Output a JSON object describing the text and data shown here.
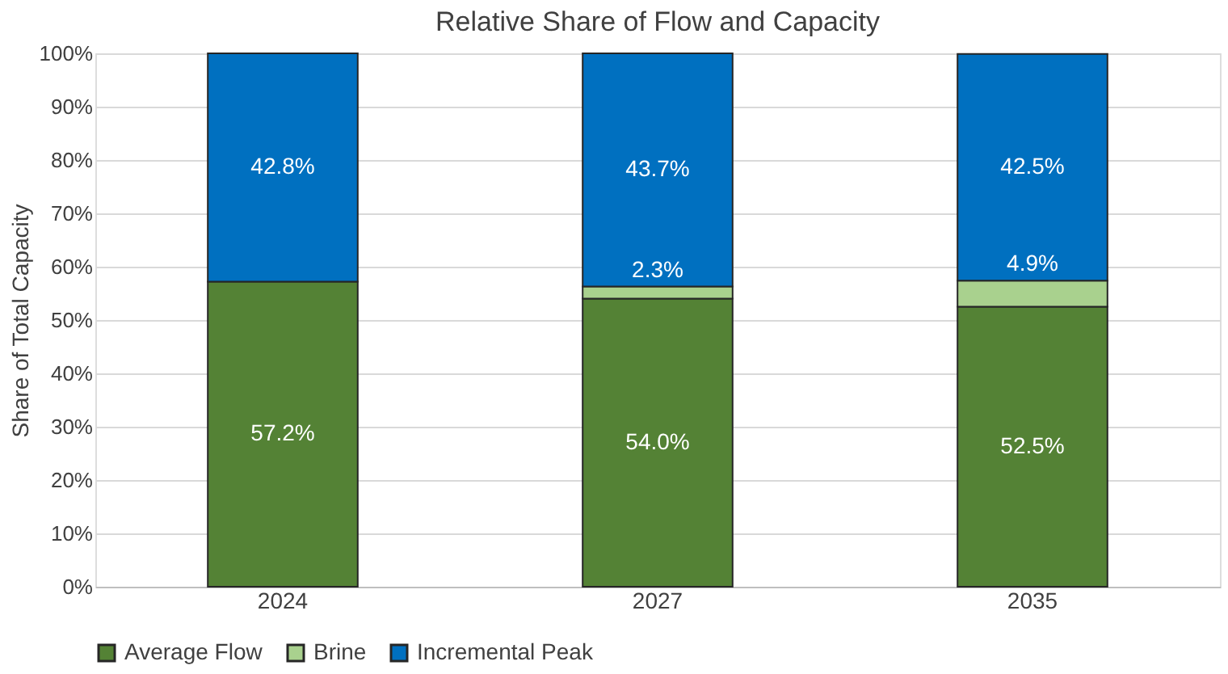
{
  "chart_data": {
    "type": "bar",
    "title": "Relative Share of Flow and Capacity",
    "ylabel": "Share of Total Capacity",
    "categories": [
      "2024",
      "2027",
      "2035"
    ],
    "stacked": true,
    "data_labels": true,
    "series": [
      {
        "name": "Average Flow",
        "color": "#548235",
        "values": [
          57.2,
          54.0,
          52.5
        ],
        "value_labels": [
          "57.2%",
          "54.0%",
          "52.5%"
        ]
      },
      {
        "name": "Brine",
        "color": "#a9d18e",
        "values": [
          null,
          2.3,
          4.9
        ],
        "value_labels": [
          null,
          "2.3%",
          "4.9%"
        ]
      },
      {
        "name": "Incremental Peak",
        "color": "#0070c0",
        "values": [
          42.8,
          43.7,
          42.5
        ],
        "value_labels": [
          "42.8%",
          "43.7%",
          "42.5%"
        ]
      }
    ],
    "ylim": [
      0,
      100
    ],
    "yticks": [
      {
        "value": 0,
        "label": "0%"
      },
      {
        "value": 10,
        "label": "10%"
      },
      {
        "value": 20,
        "label": "20%"
      },
      {
        "value": 30,
        "label": "30%"
      },
      {
        "value": 40,
        "label": "40%"
      },
      {
        "value": 50,
        "label": "50%"
      },
      {
        "value": 60,
        "label": "60%"
      },
      {
        "value": 70,
        "label": "70%"
      },
      {
        "value": 80,
        "label": "80%"
      },
      {
        "value": 90,
        "label": "90%"
      },
      {
        "value": 100,
        "label": "100%"
      }
    ],
    "grid": "y",
    "legend": "bottom"
  }
}
